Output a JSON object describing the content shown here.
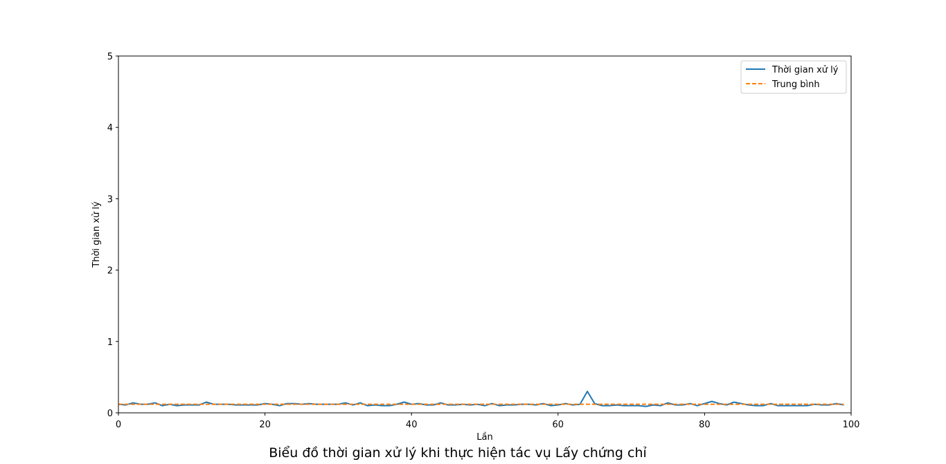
{
  "caption": "Biểu đồ thời gian xử lý khi thực hiện tác vụ Lấy chứng chỉ",
  "chart_data": {
    "type": "line",
    "xlabel": "Lần",
    "ylabel": "Thời gian xử lý",
    "xlim": [
      0,
      100
    ],
    "ylim": [
      0,
      5
    ],
    "xticks": [
      0,
      20,
      40,
      60,
      80,
      100
    ],
    "yticks": [
      0,
      1,
      2,
      3,
      4,
      5
    ],
    "grid": false,
    "legend_position": "top-right",
    "colors": {
      "series": "#1f77b4",
      "mean": "#ff7f0e"
    },
    "series": [
      {
        "name": "Thời gian xử lý",
        "style": "solid",
        "x": [
          0,
          1,
          2,
          3,
          4,
          5,
          6,
          7,
          8,
          9,
          10,
          11,
          12,
          13,
          14,
          15,
          16,
          17,
          18,
          19,
          20,
          21,
          22,
          23,
          24,
          25,
          26,
          27,
          28,
          29,
          30,
          31,
          32,
          33,
          34,
          35,
          36,
          37,
          38,
          39,
          40,
          41,
          42,
          43,
          44,
          45,
          46,
          47,
          48,
          49,
          50,
          51,
          52,
          53,
          54,
          55,
          56,
          57,
          58,
          59,
          60,
          61,
          62,
          63,
          64,
          65,
          66,
          67,
          68,
          69,
          70,
          71,
          72,
          73,
          74,
          75,
          76,
          77,
          78,
          79,
          80,
          81,
          82,
          83,
          84,
          85,
          86,
          87,
          88,
          89,
          90,
          91,
          92,
          93,
          94,
          95,
          96,
          97,
          98,
          99
        ],
        "values": [
          0.12,
          0.11,
          0.14,
          0.12,
          0.12,
          0.14,
          0.1,
          0.12,
          0.1,
          0.11,
          0.11,
          0.11,
          0.15,
          0.12,
          0.12,
          0.12,
          0.11,
          0.11,
          0.11,
          0.11,
          0.13,
          0.12,
          0.1,
          0.13,
          0.13,
          0.12,
          0.13,
          0.12,
          0.12,
          0.12,
          0.12,
          0.14,
          0.11,
          0.14,
          0.1,
          0.11,
          0.1,
          0.1,
          0.12,
          0.15,
          0.12,
          0.13,
          0.11,
          0.11,
          0.14,
          0.11,
          0.11,
          0.12,
          0.11,
          0.12,
          0.1,
          0.13,
          0.1,
          0.11,
          0.11,
          0.12,
          0.12,
          0.11,
          0.13,
          0.1,
          0.11,
          0.13,
          0.11,
          0.12,
          0.3,
          0.13,
          0.1,
          0.1,
          0.11,
          0.1,
          0.1,
          0.1,
          0.09,
          0.11,
          0.1,
          0.14,
          0.11,
          0.11,
          0.13,
          0.1,
          0.13,
          0.16,
          0.13,
          0.11,
          0.15,
          0.13,
          0.11,
          0.1,
          0.1,
          0.13,
          0.1,
          0.1,
          0.1,
          0.1,
          0.1,
          0.12,
          0.11,
          0.11,
          0.13,
          0.11
        ]
      },
      {
        "name": "Trung bình",
        "style": "dashed",
        "x": [
          0,
          99
        ],
        "values": [
          0.12,
          0.12
        ]
      }
    ]
  }
}
